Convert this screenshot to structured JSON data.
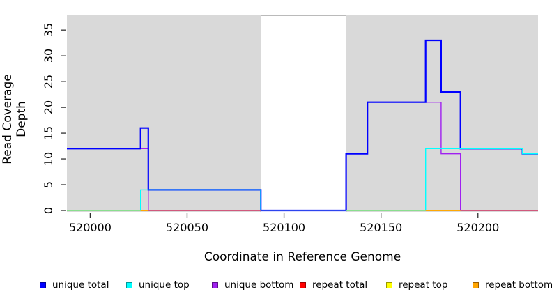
{
  "chart_data": {
    "type": "line",
    "subtype": "step",
    "title": "",
    "xlabel": "Coordinate in Reference Genome",
    "ylabel": "Read Coverage Depth",
    "xlim": [
      519988,
      520231
    ],
    "ylim": [
      0,
      38
    ],
    "x_ticks": [
      520000,
      520050,
      520100,
      520150,
      520200
    ],
    "y_ticks": [
      0,
      5,
      10,
      15,
      20,
      25,
      30,
      35
    ],
    "grid": false,
    "legend_position": "bottom",
    "background": "#ffffff",
    "shaded_color": "#d9d9d9",
    "shaded_regions": [
      [
        519988,
        520088
      ],
      [
        520132,
        520231
      ]
    ],
    "gap_region": {
      "from": 520088,
      "to": 520132,
      "top_border_color": "#909090"
    },
    "series": [
      {
        "name": "unique total",
        "color": "#0000ff",
        "legend_border": "#00009a",
        "width": 2.2,
        "steps": [
          [
            519988,
            12
          ],
          [
            520026,
            16
          ],
          [
            520030,
            4
          ],
          [
            520088,
            0
          ],
          [
            520132,
            11
          ],
          [
            520143,
            21
          ],
          [
            520173,
            33
          ],
          [
            520181,
            23
          ],
          [
            520191,
            12
          ],
          [
            520223,
            11
          ],
          [
            520231,
            11
          ]
        ]
      },
      {
        "name": "unique top",
        "color": "#00ffff",
        "legend_border": "#009a9a",
        "width": 1.4,
        "steps": [
          [
            519988,
            0
          ],
          [
            520026,
            4
          ],
          [
            520088,
            0
          ],
          [
            520173,
            12
          ],
          [
            520223,
            11
          ],
          [
            520231,
            11
          ]
        ]
      },
      {
        "name": "unique bottom",
        "color": "#a020f0",
        "legend_border": "#5c0e8a",
        "width": 1.4,
        "steps": [
          [
            519988,
            12
          ],
          [
            520030,
            0
          ],
          [
            520132,
            11
          ],
          [
            520143,
            21
          ],
          [
            520181,
            11
          ],
          [
            520191,
            0
          ],
          [
            520231,
            0
          ]
        ]
      },
      {
        "name": "repeat total",
        "color": "#ff0000",
        "legend_border": "#9a0000",
        "width": 1.4,
        "steps": [
          [
            519988,
            0
          ],
          [
            520231,
            0
          ]
        ]
      },
      {
        "name": "repeat top",
        "color": "#ffff00",
        "legend_border": "#9a9a00",
        "width": 1.4,
        "steps": [
          [
            519988,
            0
          ],
          [
            520231,
            0
          ]
        ]
      },
      {
        "name": "repeat bottom",
        "color": "#ffa500",
        "legend_border": "#9a5c00",
        "width": 1.4,
        "steps": [
          [
            519988,
            0
          ],
          [
            520231,
            0
          ]
        ]
      }
    ],
    "draw_order": [
      3,
      4,
      5,
      2,
      0,
      1
    ],
    "baseline_visible_segments": [
      [
        519988,
        520026,
        "#8ee08e"
      ],
      [
        520026,
        520030,
        "#ffa500"
      ],
      [
        520030,
        520088,
        "#d2547a"
      ],
      [
        520088,
        520132,
        "#3a30e8"
      ],
      [
        520132,
        520173,
        "#8ee08e"
      ],
      [
        520173,
        520191,
        "#ffa500"
      ],
      [
        520191,
        520231,
        "#d2547a"
      ]
    ]
  }
}
